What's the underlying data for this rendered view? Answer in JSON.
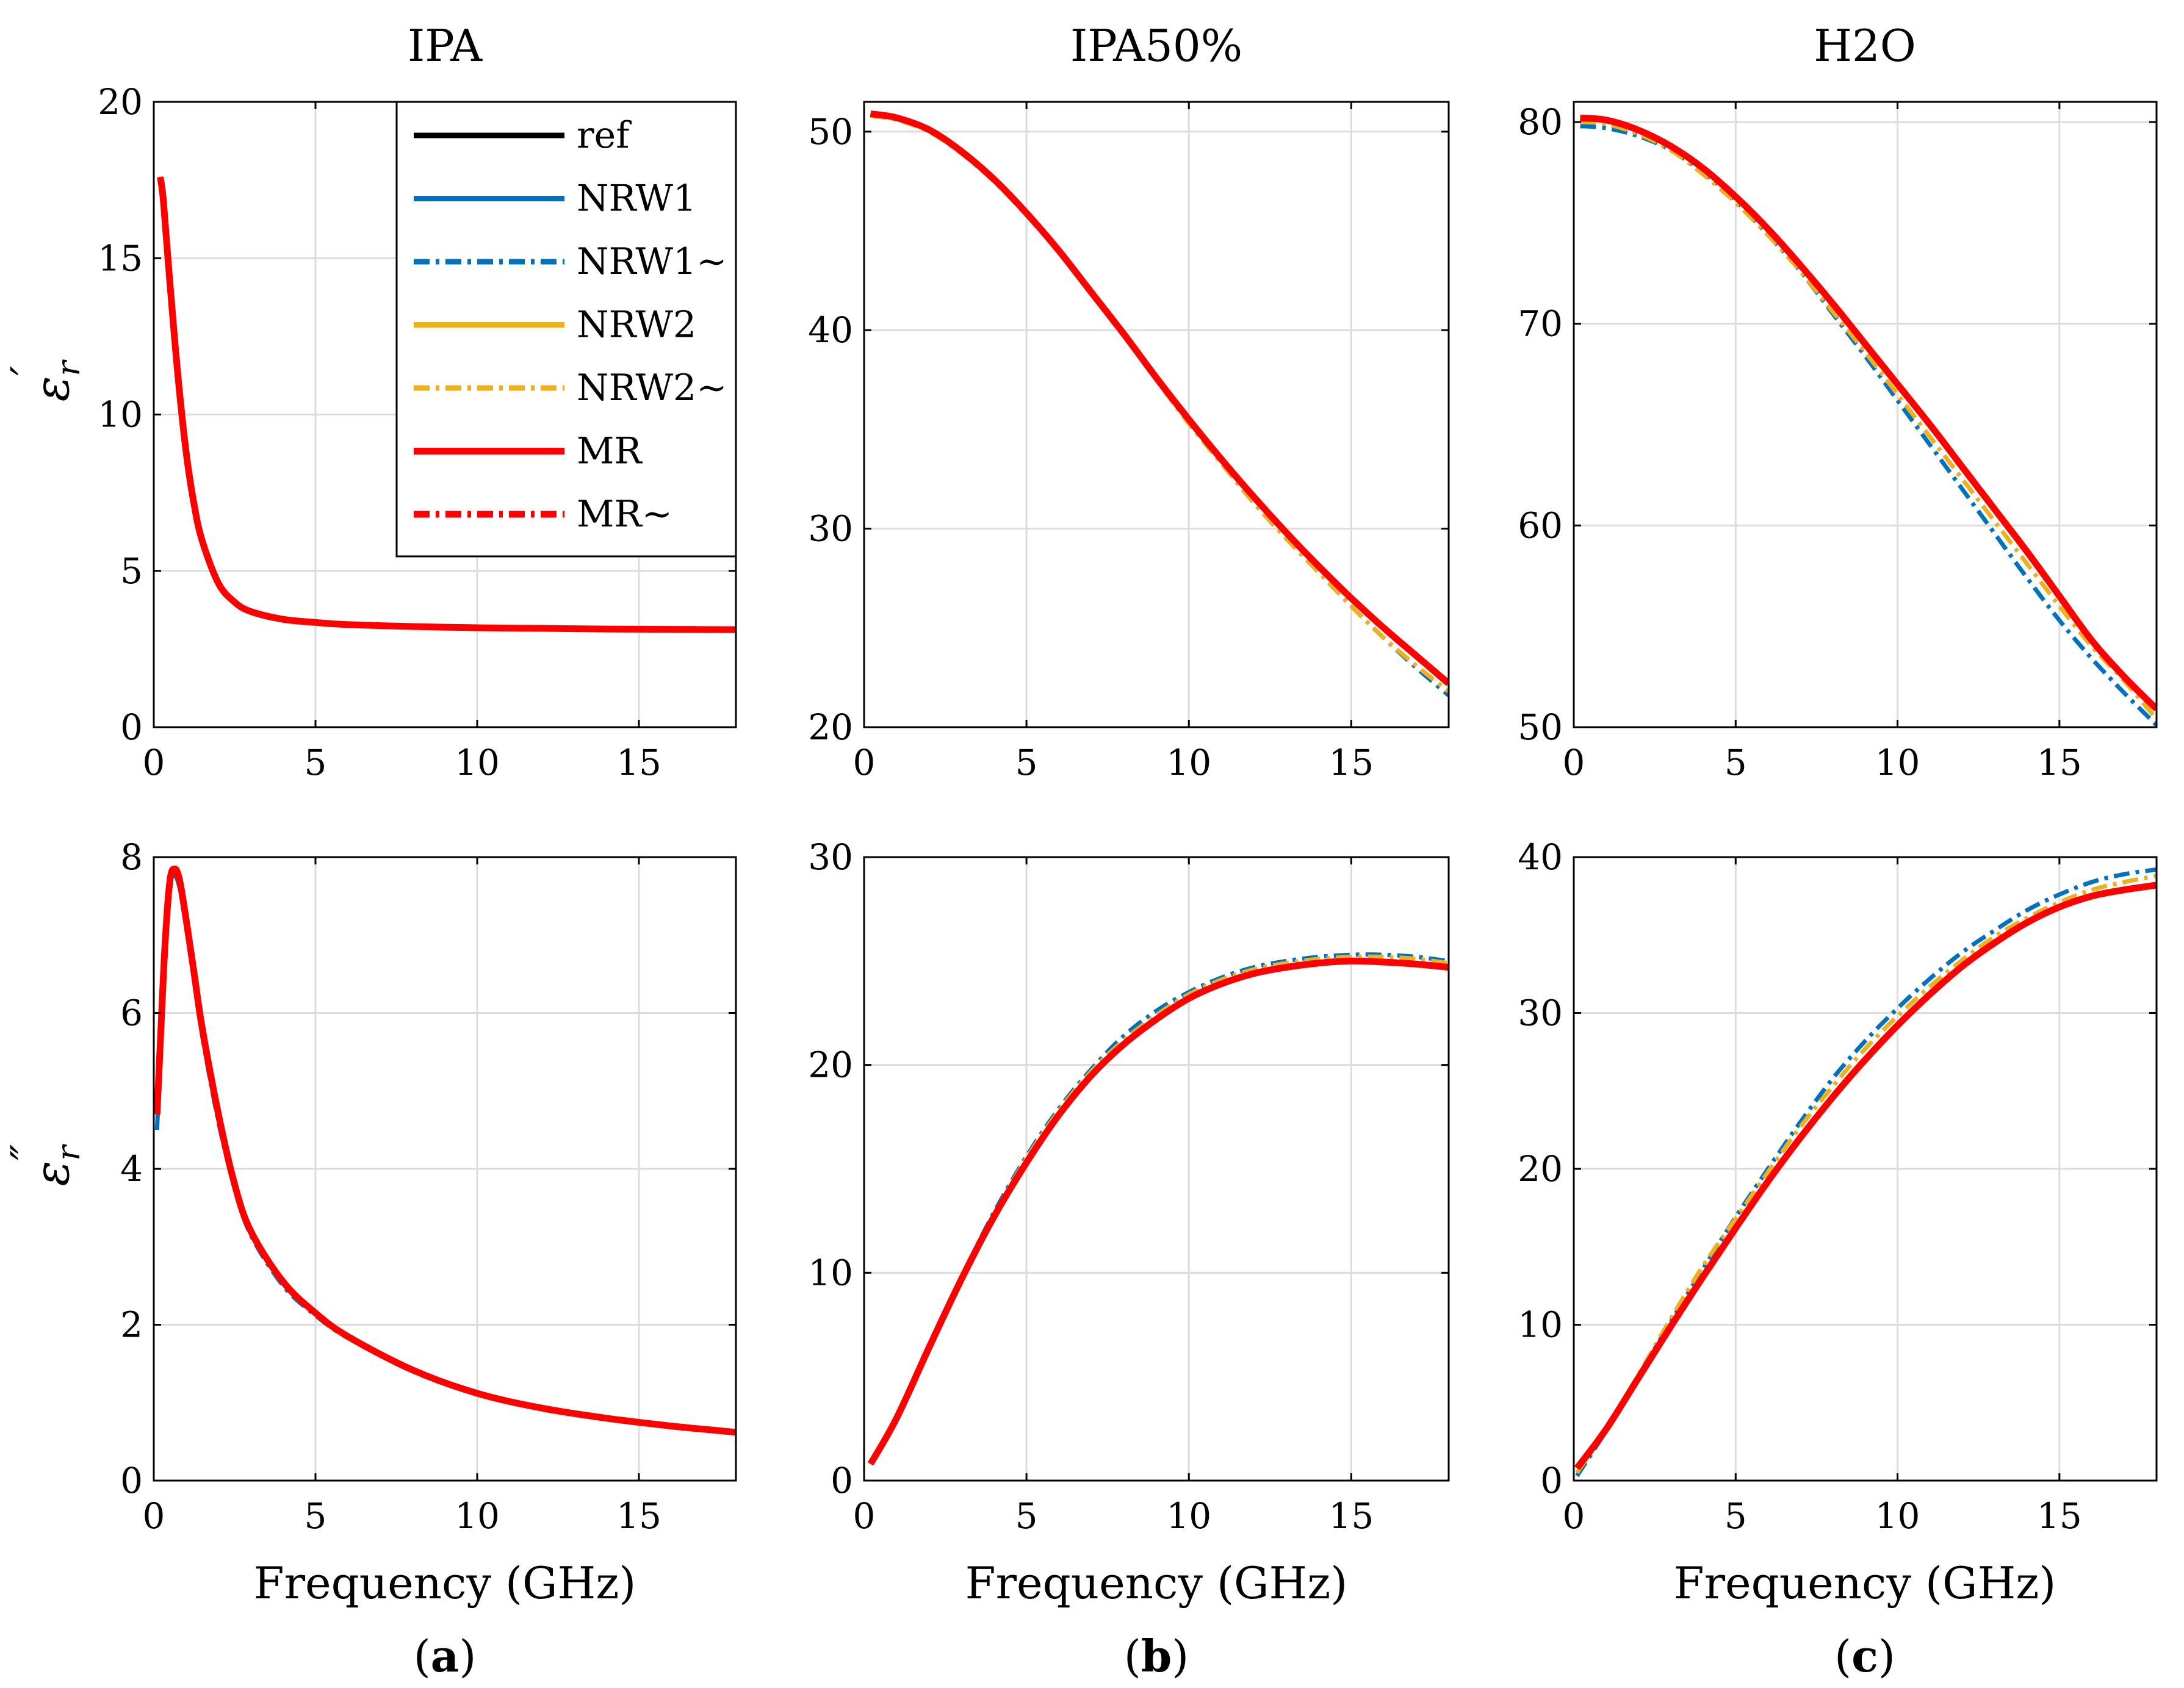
{
  "figure": {
    "titles": [
      "IPA",
      "IPA50%",
      "H2O"
    ],
    "captions": [
      {
        "open": "(",
        "letter": "a",
        "close": ")"
      },
      {
        "open": "(",
        "letter": "b",
        "close": ")"
      },
      {
        "open": "(",
        "letter": "c",
        "close": ")"
      }
    ],
    "ylabels": {
      "top": {
        "symbol": "ε",
        "sup": "′",
        "sub": "r"
      },
      "bottom": {
        "symbol": "ε",
        "sup": "″",
        "sub": "r"
      }
    },
    "xlabel": "Frequency (GHz)"
  },
  "legend": [
    {
      "name": "ref",
      "color": "#000000",
      "dash": "solid"
    },
    {
      "name": "NRW1",
      "color": "#0072BD",
      "dash": "solid"
    },
    {
      "name": "NRW1~",
      "color": "#0072BD",
      "dash": "dashdot"
    },
    {
      "name": "NRW2",
      "color": "#EDB120",
      "dash": "solid"
    },
    {
      "name": "NRW2~",
      "color": "#EDB120",
      "dash": "dashdot"
    },
    {
      "name": "MR",
      "color": "#FF0000",
      "dash": "solid"
    },
    {
      "name": "MR~",
      "color": "#FF0000",
      "dash": "dashdot"
    }
  ],
  "chart_data": [
    {
      "id": "a_top",
      "type": "line",
      "title": "IPA",
      "xlabel": "",
      "ylabel": "ε′r",
      "xlim": [
        0,
        18
      ],
      "ylim": [
        0,
        20
      ],
      "xticks": [
        0,
        5,
        10,
        15
      ],
      "yticks": [
        0,
        5,
        10,
        15,
        20
      ],
      "x": [
        0.2,
        0.3,
        0.5,
        0.75,
        1,
        1.25,
        1.5,
        2,
        2.5,
        3,
        4,
        5,
        6,
        8,
        10,
        12,
        14,
        16,
        18
      ],
      "series": [
        {
          "name": "ref",
          "values": [
            17.6,
            16.8,
            14.2,
            11.2,
            8.8,
            7.1,
            5.95,
            4.6,
            4.0,
            3.7,
            3.45,
            3.35,
            3.28,
            3.22,
            3.18,
            3.16,
            3.14,
            3.13,
            3.12
          ]
        },
        {
          "name": "MR",
          "values": [
            17.6,
            16.8,
            14.2,
            11.2,
            8.8,
            7.1,
            5.95,
            4.6,
            4.0,
            3.7,
            3.45,
            3.35,
            3.28,
            3.22,
            3.18,
            3.16,
            3.14,
            3.13,
            3.12
          ]
        }
      ]
    },
    {
      "id": "b_top",
      "type": "line",
      "title": "IPA50%",
      "xlabel": "",
      "ylabel": "",
      "xlim": [
        0,
        18
      ],
      "ylim": [
        20,
        51.5
      ],
      "xticks": [
        0,
        5,
        10,
        15
      ],
      "yticks": [
        20,
        30,
        40,
        50
      ],
      "x": [
        0.2,
        1,
        2,
        3,
        4,
        5,
        6,
        7,
        8,
        9,
        10,
        11,
        12,
        13,
        14,
        15,
        16,
        17,
        18
      ],
      "series": [
        {
          "name": "ref",
          "values": [
            50.9,
            50.7,
            50.1,
            49.0,
            47.6,
            45.9,
            44.0,
            41.9,
            39.8,
            37.6,
            35.5,
            33.5,
            31.6,
            29.8,
            28.1,
            26.5,
            25.0,
            23.6,
            22.2
          ]
        },
        {
          "name": "NRW1~",
          "values": [
            50.8,
            50.6,
            50.0,
            48.9,
            47.5,
            45.8,
            43.9,
            41.8,
            39.7,
            37.5,
            35.3,
            33.3,
            31.3,
            29.5,
            27.8,
            26.1,
            24.5,
            23.0,
            21.6
          ]
        },
        {
          "name": "NRW2~",
          "values": [
            50.8,
            50.6,
            50.0,
            48.9,
            47.5,
            45.8,
            43.9,
            41.8,
            39.7,
            37.5,
            35.3,
            33.3,
            31.3,
            29.5,
            27.8,
            26.1,
            24.5,
            23.1,
            21.8
          ]
        },
        {
          "name": "MR",
          "values": [
            50.9,
            50.7,
            50.1,
            49.0,
            47.6,
            45.9,
            44.0,
            41.9,
            39.8,
            37.6,
            35.5,
            33.5,
            31.6,
            29.8,
            28.1,
            26.5,
            25.0,
            23.6,
            22.2
          ]
        }
      ]
    },
    {
      "id": "c_top",
      "type": "line",
      "title": "H2O",
      "xlabel": "",
      "ylabel": "",
      "xlim": [
        0,
        18
      ],
      "ylim": [
        50,
        81
      ],
      "xticks": [
        0,
        5,
        10,
        15
      ],
      "yticks": [
        50,
        60,
        70,
        80
      ],
      "x": [
        0.2,
        1,
        2,
        3,
        4,
        5,
        6,
        7,
        8,
        9,
        10,
        11,
        12,
        13,
        14,
        15,
        16,
        17,
        18
      ],
      "series": [
        {
          "name": "ref",
          "values": [
            80.2,
            80.1,
            79.6,
            78.8,
            77.7,
            76.3,
            74.7,
            72.9,
            71.0,
            69.0,
            67.0,
            65.0,
            62.9,
            60.8,
            58.7,
            56.5,
            54.3,
            52.5,
            50.9
          ]
        },
        {
          "name": "NRW1~",
          "values": [
            79.8,
            79.7,
            79.3,
            78.6,
            77.5,
            76.1,
            74.4,
            72.6,
            70.5,
            68.4,
            66.2,
            64.0,
            61.8,
            59.6,
            57.4,
            55.3,
            53.4,
            51.7,
            50.1
          ]
        },
        {
          "name": "NRW2~",
          "values": [
            80.0,
            79.9,
            79.4,
            78.6,
            77.4,
            76.0,
            74.4,
            72.6,
            70.6,
            68.6,
            66.5,
            64.4,
            62.3,
            60.2,
            58.1,
            56.0,
            54.0,
            52.3,
            50.4
          ]
        },
        {
          "name": "MR",
          "values": [
            80.2,
            80.1,
            79.6,
            78.8,
            77.7,
            76.3,
            74.7,
            72.9,
            71.0,
            69.0,
            67.0,
            65.0,
            62.9,
            60.8,
            58.7,
            56.5,
            54.3,
            52.5,
            50.9
          ]
        }
      ]
    },
    {
      "id": "a_bottom",
      "type": "line",
      "title": "",
      "xlabel": "Frequency (GHz)",
      "ylabel": "ε″r",
      "xlim": [
        0,
        18
      ],
      "ylim": [
        0,
        8
      ],
      "xticks": [
        0,
        5,
        10,
        15
      ],
      "yticks": [
        0,
        2,
        4,
        6,
        8
      ],
      "x": [
        0.1,
        0.2,
        0.35,
        0.5,
        0.65,
        0.8,
        1.0,
        1.25,
        1.5,
        2,
        2.5,
        3,
        4,
        5,
        6,
        8,
        10,
        12,
        14,
        16,
        18
      ],
      "series": [
        {
          "name": "ref",
          "values": [
            4.7,
            5.6,
            6.9,
            7.7,
            7.85,
            7.7,
            7.2,
            6.5,
            5.8,
            4.7,
            3.8,
            3.2,
            2.55,
            2.15,
            1.85,
            1.42,
            1.12,
            0.93,
            0.8,
            0.7,
            0.62
          ]
        },
        {
          "name": "NRW1~",
          "values": [
            4.5,
            5.4,
            6.7,
            7.6,
            7.75,
            7.6,
            7.1,
            6.4,
            5.7,
            4.6,
            3.75,
            3.15,
            2.5,
            2.12,
            1.83,
            1.41,
            1.11,
            0.92,
            0.79,
            0.69,
            0.61
          ]
        },
        {
          "name": "MR",
          "values": [
            4.7,
            5.6,
            6.9,
            7.7,
            7.85,
            7.7,
            7.2,
            6.5,
            5.8,
            4.7,
            3.8,
            3.2,
            2.55,
            2.15,
            1.85,
            1.42,
            1.12,
            0.93,
            0.8,
            0.7,
            0.62
          ]
        }
      ]
    },
    {
      "id": "b_bottom",
      "type": "line",
      "title": "",
      "xlabel": "Frequency (GHz)",
      "ylabel": "",
      "xlim": [
        0,
        18
      ],
      "ylim": [
        0,
        30
      ],
      "xticks": [
        0,
        5,
        10,
        15
      ],
      "yticks": [
        0,
        10,
        20,
        30
      ],
      "x": [
        0.2,
        1,
        2,
        3,
        4,
        5,
        6,
        7,
        8,
        9,
        10,
        11,
        12,
        13,
        14,
        15,
        16,
        17,
        18
      ],
      "series": [
        {
          "name": "ref",
          "values": [
            0.8,
            3.0,
            6.4,
            9.7,
            12.7,
            15.3,
            17.6,
            19.5,
            21.0,
            22.2,
            23.2,
            23.9,
            24.4,
            24.7,
            24.9,
            25.0,
            24.95,
            24.85,
            24.7
          ]
        },
        {
          "name": "NRW1~",
          "values": [
            0.8,
            3.0,
            6.5,
            9.8,
            12.9,
            15.6,
            17.9,
            19.8,
            21.4,
            22.6,
            23.5,
            24.2,
            24.7,
            25.0,
            25.2,
            25.3,
            25.3,
            25.2,
            25.0
          ]
        },
        {
          "name": "NRW2~",
          "values": [
            0.8,
            3.0,
            6.5,
            9.8,
            12.8,
            15.5,
            17.8,
            19.7,
            21.2,
            22.4,
            23.4,
            24.1,
            24.6,
            24.9,
            25.1,
            25.2,
            25.2,
            25.1,
            24.9
          ]
        },
        {
          "name": "MR",
          "values": [
            0.8,
            3.0,
            6.4,
            9.7,
            12.7,
            15.3,
            17.6,
            19.5,
            21.0,
            22.2,
            23.2,
            23.9,
            24.4,
            24.7,
            24.9,
            25.0,
            24.95,
            24.85,
            24.7
          ]
        }
      ]
    },
    {
      "id": "c_bottom",
      "type": "line",
      "title": "",
      "xlabel": "Frequency (GHz)",
      "ylabel": "",
      "xlim": [
        0,
        18
      ],
      "ylim": [
        0,
        40
      ],
      "xticks": [
        0,
        5,
        10,
        15
      ],
      "yticks": [
        0,
        10,
        20,
        30,
        40
      ],
      "x": [
        0.1,
        1,
        2,
        3,
        4,
        5,
        6,
        7,
        8,
        9,
        10,
        11,
        12,
        13,
        14,
        15,
        16,
        17,
        18
      ],
      "series": [
        {
          "name": "ref",
          "values": [
            0.8,
            3.3,
            6.6,
            9.9,
            13.1,
            16.2,
            19.2,
            22.0,
            24.6,
            27.0,
            29.2,
            31.2,
            33.0,
            34.5,
            35.8,
            36.8,
            37.5,
            37.9,
            38.2
          ]
        },
        {
          "name": "NRW1~",
          "values": [
            0.3,
            3.2,
            6.7,
            10.2,
            13.6,
            16.9,
            20.0,
            23.0,
            25.8,
            28.2,
            30.3,
            32.2,
            33.9,
            35.3,
            36.6,
            37.6,
            38.4,
            38.9,
            39.2
          ]
        },
        {
          "name": "NRW2~",
          "values": [
            0.5,
            3.3,
            6.8,
            10.4,
            13.8,
            16.8,
            19.8,
            22.7,
            25.3,
            27.7,
            29.8,
            31.7,
            33.4,
            34.9,
            36.1,
            37.1,
            37.9,
            38.4,
            38.8
          ]
        },
        {
          "name": "MR",
          "values": [
            0.8,
            3.3,
            6.6,
            9.9,
            13.1,
            16.2,
            19.2,
            22.0,
            24.6,
            27.0,
            29.2,
            31.2,
            33.0,
            34.5,
            35.8,
            36.8,
            37.5,
            37.9,
            38.2
          ]
        }
      ]
    }
  ]
}
